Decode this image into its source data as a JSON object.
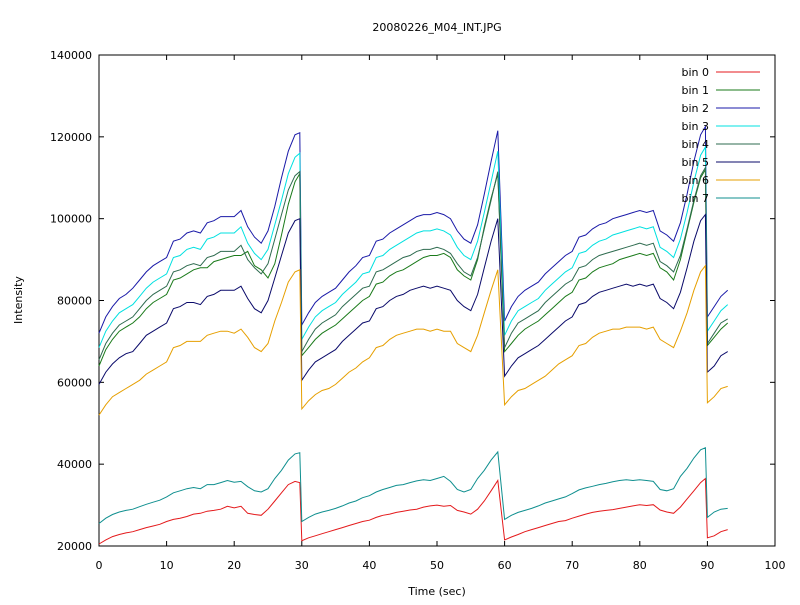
{
  "chart_data": {
    "type": "line",
    "title": "20080226_M04_INT.JPG",
    "xlabel": "Time (sec)",
    "ylabel": "Intensity",
    "xlim": [
      0,
      100
    ],
    "ylim": [
      20000,
      140000
    ],
    "xticks": [
      0,
      10,
      20,
      30,
      40,
      50,
      60,
      70,
      80,
      90,
      100
    ],
    "yticks": [
      20000,
      40000,
      60000,
      80000,
      100000,
      120000,
      140000
    ],
    "grid": false,
    "legend_position": "top-right",
    "x": [
      0,
      1,
      2,
      3,
      4,
      5,
      6,
      7,
      8,
      9,
      10,
      11,
      12,
      13,
      14,
      15,
      16,
      17,
      18,
      19,
      20,
      21,
      22,
      23,
      24,
      25,
      26,
      27,
      28,
      29,
      29.7,
      30,
      31,
      32,
      33,
      34,
      35,
      36,
      37,
      38,
      39,
      40,
      41,
      42,
      43,
      44,
      45,
      46,
      47,
      48,
      49,
      50,
      51,
      52,
      53,
      54,
      55,
      56,
      57,
      58,
      59,
      60,
      61,
      62,
      63,
      64,
      65,
      66,
      67,
      68,
      69,
      70,
      71,
      72,
      73,
      74,
      75,
      76,
      77,
      78,
      79,
      80,
      81,
      82,
      83,
      84,
      85,
      86,
      87,
      88,
      89,
      89.7,
      90,
      91,
      92,
      93
    ],
    "series": [
      {
        "name": "bin 0",
        "color": "#e41a1c",
        "values": [
          20500,
          21500,
          22300,
          22800,
          23200,
          23500,
          24000,
          24500,
          24900,
          25300,
          26000,
          26500,
          26800,
          27200,
          27800,
          28000,
          28500,
          28700,
          29000,
          29700,
          29300,
          29700,
          28000,
          27700,
          27500,
          29000,
          31000,
          33000,
          35000,
          35800,
          35500,
          21300,
          22000,
          22500,
          23000,
          23500,
          24000,
          24500,
          25000,
          25500,
          26000,
          26300,
          27000,
          27500,
          27800,
          28200,
          28500,
          28800,
          29000,
          29500,
          29800,
          30000,
          29700,
          29900,
          28700,
          28300,
          27800,
          29000,
          31000,
          33500,
          36000,
          21500,
          22200,
          22800,
          23500,
          24000,
          24500,
          25000,
          25500,
          26000,
          26200,
          26800,
          27300,
          27800,
          28200,
          28500,
          28700,
          28900,
          29200,
          29500,
          29800,
          30100,
          29900,
          30100,
          28800,
          28300,
          28000,
          29500,
          31500,
          33500,
          35500,
          36500,
          22000,
          22500,
          23500,
          24000
        ]
      },
      {
        "name": "bin 1",
        "color": "#1a7a1a",
        "values": [
          64000,
          68000,
          70500,
          72500,
          73500,
          74500,
          76000,
          78000,
          79500,
          80500,
          81500,
          85000,
          85500,
          86500,
          87500,
          88000,
          88000,
          89500,
          90000,
          90500,
          91000,
          91000,
          92000,
          88500,
          87500,
          85500,
          89000,
          96000,
          103500,
          109000,
          111000,
          66500,
          68500,
          70500,
          72000,
          73000,
          74000,
          75500,
          77000,
          78500,
          80000,
          81000,
          84000,
          84500,
          86000,
          87000,
          87500,
          88500,
          89500,
          90500,
          91000,
          91000,
          91500,
          90500,
          87500,
          86000,
          85000,
          90000,
          98000,
          105000,
          111000,
          67500,
          69500,
          71500,
          73000,
          74000,
          75000,
          76500,
          78000,
          79500,
          81000,
          82000,
          85000,
          85500,
          87000,
          88000,
          88500,
          89000,
          90000,
          90500,
          91000,
          91500,
          91000,
          91500,
          88000,
          87000,
          85000,
          90000,
          97000,
          104000,
          110000,
          112000,
          69000,
          71000,
          73000,
          74500
        ]
      },
      {
        "name": "bin 2",
        "color": "#1a1aa8",
        "values": [
          72000,
          76000,
          78500,
          80500,
          81500,
          83000,
          85000,
          87000,
          88500,
          89500,
          90500,
          94500,
          95000,
          96500,
          97000,
          96500,
          99000,
          99500,
          100500,
          100500,
          100500,
          102000,
          98000,
          95500,
          94000,
          97000,
          103000,
          110000,
          116500,
          120500,
          121000,
          74000,
          77000,
          79500,
          81000,
          82000,
          83000,
          85000,
          87000,
          88500,
          90500,
          91000,
          94500,
          95000,
          96500,
          97500,
          98500,
          99500,
          100500,
          101000,
          101000,
          101500,
          101000,
          100000,
          97000,
          95000,
          94000,
          98500,
          106000,
          114000,
          121500,
          75000,
          78500,
          81000,
          82500,
          83500,
          84500,
          86500,
          88000,
          89500,
          91000,
          92000,
          95500,
          96000,
          97500,
          98500,
          99000,
          100000,
          100500,
          101000,
          101500,
          102000,
          101500,
          102000,
          97000,
          96000,
          94500,
          99000,
          106000,
          114000,
          120500,
          122500,
          76000,
          78500,
          81000,
          82500
        ]
      },
      {
        "name": "bin 3",
        "color": "#00e0e0",
        "values": [
          68500,
          72500,
          75000,
          77000,
          78000,
          79000,
          81000,
          83000,
          84500,
          85500,
          86500,
          90500,
          91000,
          92500,
          93000,
          92500,
          95000,
          95500,
          96500,
          96500,
          96500,
          98000,
          94000,
          91500,
          90000,
          92500,
          98500,
          104500,
          111000,
          115000,
          116000,
          70500,
          73500,
          76000,
          77500,
          78500,
          79500,
          81500,
          83000,
          84500,
          86500,
          87000,
          90500,
          91000,
          92500,
          93500,
          94500,
          95500,
          96500,
          97000,
          97000,
          97500,
          97000,
          96000,
          93000,
          91000,
          90000,
          94500,
          101500,
          109000,
          116500,
          71500,
          75000,
          77500,
          78500,
          79500,
          80500,
          82500,
          84000,
          85500,
          87000,
          88000,
          91500,
          92000,
          93500,
          94500,
          95000,
          96000,
          96500,
          97000,
          97500,
          98000,
          97500,
          98000,
          93000,
          92000,
          90500,
          95000,
          101500,
          109000,
          115500,
          117500,
          72500,
          75000,
          77500,
          79000
        ]
      },
      {
        "name": "bin 4",
        "color": "#2e6b4f",
        "values": [
          65500,
          69500,
          72000,
          74000,
          75000,
          76000,
          78000,
          80000,
          81500,
          82500,
          83500,
          87000,
          87500,
          88500,
          89000,
          88500,
          90500,
          91000,
          92000,
          92000,
          92000,
          93500,
          90000,
          88000,
          86500,
          89000,
          95000,
          101000,
          107000,
          110500,
          111500,
          67500,
          70500,
          73000,
          74500,
          75500,
          76500,
          78500,
          80000,
          81500,
          83000,
          83500,
          87000,
          87500,
          88500,
          89500,
          90500,
          91000,
          92000,
          92500,
          92500,
          93000,
          92500,
          91500,
          89000,
          87000,
          86000,
          90500,
          97500,
          104500,
          111500,
          68500,
          72000,
          74500,
          75500,
          76500,
          77500,
          79500,
          81000,
          82500,
          84000,
          85000,
          88000,
          88500,
          90000,
          91000,
          91500,
          92000,
          92500,
          93000,
          93500,
          94000,
          93500,
          94000,
          89500,
          88500,
          87000,
          91000,
          97500,
          104500,
          110500,
          112500,
          69500,
          72000,
          74500,
          75500
        ]
      },
      {
        "name": "bin 5",
        "color": "#0a0a6a",
        "values": [
          59500,
          62500,
          64500,
          66000,
          67000,
          67500,
          69500,
          71500,
          72500,
          73500,
          74500,
          78000,
          78500,
          79500,
          79500,
          79000,
          81000,
          81500,
          82500,
          82500,
          82500,
          83500,
          80500,
          78000,
          77000,
          80000,
          85500,
          91000,
          96500,
          99500,
          100000,
          60500,
          63000,
          65000,
          66000,
          67000,
          68000,
          70000,
          71500,
          73000,
          74500,
          75000,
          78000,
          78500,
          80000,
          81000,
          81500,
          82500,
          83000,
          83500,
          83000,
          83500,
          83000,
          82500,
          80000,
          78500,
          77500,
          81500,
          88000,
          94500,
          100000,
          61500,
          64000,
          66000,
          67000,
          68000,
          69000,
          70500,
          72000,
          73500,
          75000,
          76000,
          79000,
          79500,
          81000,
          82000,
          82500,
          83000,
          83500,
          84000,
          83500,
          84000,
          83500,
          84000,
          80500,
          79500,
          78000,
          82000,
          88000,
          94500,
          99500,
          101000,
          62500,
          64000,
          66500,
          67500
        ]
      },
      {
        "name": "bin 6",
        "color": "#e69f00",
        "values": [
          52000,
          54500,
          56500,
          57500,
          58500,
          59500,
          60500,
          62000,
          63000,
          64000,
          65000,
          68500,
          69000,
          70000,
          70000,
          70000,
          71500,
          72000,
          72500,
          72500,
          72000,
          73000,
          71000,
          68500,
          67500,
          69500,
          75000,
          79500,
          84500,
          87000,
          87500,
          53500,
          55500,
          57000,
          58000,
          58500,
          59500,
          61000,
          62500,
          63500,
          65000,
          66000,
          68500,
          69000,
          70500,
          71500,
          72000,
          72500,
          73000,
          73000,
          72500,
          73000,
          72500,
          72500,
          69500,
          68500,
          67500,
          71500,
          77000,
          82500,
          87500,
          54500,
          56500,
          58000,
          58500,
          59500,
          60500,
          61500,
          63000,
          64500,
          65500,
          66500,
          69000,
          69500,
          71000,
          72000,
          72500,
          73000,
          73000,
          73500,
          73500,
          73500,
          73000,
          73500,
          70500,
          69500,
          68500,
          72500,
          77000,
          82500,
          87000,
          88500,
          55000,
          56500,
          58500,
          59000
        ]
      },
      {
        "name": "bin 7",
        "color": "#0f8f8f",
        "values": [
          25500,
          26800,
          27700,
          28300,
          28700,
          29000,
          29600,
          30200,
          30700,
          31200,
          32000,
          33000,
          33500,
          34000,
          34300,
          34000,
          35000,
          35000,
          35500,
          36000,
          35600,
          35800,
          34500,
          33500,
          33200,
          34000,
          36500,
          38500,
          41000,
          42500,
          42800,
          26000,
          27000,
          27800,
          28300,
          28700,
          29200,
          29800,
          30500,
          31000,
          31800,
          32300,
          33200,
          33800,
          34300,
          34800,
          35000,
          35500,
          35900,
          36200,
          36000,
          36500,
          37000,
          35800,
          33800,
          33200,
          33800,
          36500,
          38500,
          41000,
          43000,
          26500,
          27500,
          28200,
          28700,
          29200,
          29800,
          30500,
          31000,
          31500,
          32000,
          32800,
          33700,
          34200,
          34600,
          35000,
          35300,
          35700,
          36000,
          36200,
          36000,
          36200,
          36000,
          35800,
          33800,
          33500,
          34000,
          37000,
          39000,
          41500,
          43500,
          44000,
          27000,
          28300,
          29000,
          29200
        ]
      }
    ]
  }
}
